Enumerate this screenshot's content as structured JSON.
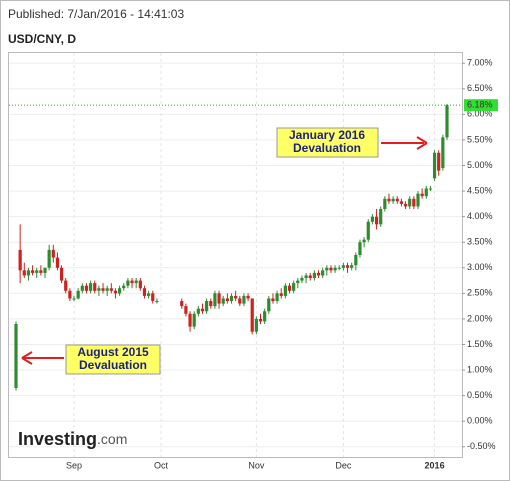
{
  "chart_data": {
    "type": "candlestick",
    "published": "Published: 7/Jan/2016 - 14:41:03",
    "title": "USD/CNY, D",
    "logo": {
      "name": "Investing",
      "suffix": ".com"
    },
    "annotations": [
      {
        "line1": "August 2015",
        "line2": "Devaluation"
      },
      {
        "line1": "January 2016",
        "line2": "Devaluation"
      }
    ],
    "up_color": "#2e8b2e",
    "down_color": "#cc2222",
    "grid": true,
    "ylim": [
      -0.7,
      7.2
    ],
    "yticks": [
      {
        "value": -0.5,
        "label": "-0.50%"
      },
      {
        "value": 0,
        "label": "0.00%"
      },
      {
        "value": 0.5,
        "label": "0.50%"
      },
      {
        "value": 1,
        "label": "1.00%"
      },
      {
        "value": 1.5,
        "label": "1.50%"
      },
      {
        "value": 2,
        "label": "2.00%"
      },
      {
        "value": 2.5,
        "label": "2.50%"
      },
      {
        "value": 3,
        "label": "3.00%"
      },
      {
        "value": 3.5,
        "label": "3.50%"
      },
      {
        "value": 4,
        "label": "4.00%"
      },
      {
        "value": 4.5,
        "label": "4.50%"
      },
      {
        "value": 5,
        "label": "5.00%"
      },
      {
        "value": 5.5,
        "label": "5.50%"
      },
      {
        "value": 6,
        "label": "6.00%"
      },
      {
        "value": 6.5,
        "label": "6.50%"
      },
      {
        "value": 7,
        "label": "7.00%"
      }
    ],
    "last_value": {
      "value": 6.18,
      "label": "6.18%"
    },
    "categories": [
      null,
      null,
      null,
      null,
      null,
      null,
      null,
      null,
      null,
      null,
      null,
      null,
      null,
      null,
      "Sep",
      null,
      null,
      null,
      null,
      null,
      null,
      null,
      null,
      null,
      null,
      null,
      null,
      null,
      null,
      null,
      null,
      null,
      null,
      null,
      null,
      "Oct",
      null,
      null,
      null,
      null,
      null,
      null,
      null,
      null,
      null,
      null,
      null,
      null,
      null,
      null,
      null,
      null,
      null,
      null,
      null,
      null,
      null,
      null,
      "Nov",
      null,
      null,
      null,
      null,
      null,
      null,
      null,
      null,
      null,
      null,
      null,
      null,
      null,
      null,
      null,
      null,
      null,
      null,
      null,
      null,
      "Dec",
      null,
      null,
      null,
      null,
      null,
      null,
      null,
      null,
      null,
      null,
      null,
      null,
      null,
      null,
      null,
      null,
      null,
      null,
      null,
      null,
      null,
      "2016",
      null,
      null,
      null
    ],
    "open": [
      0.65,
      3.35,
      2.95,
      2.85,
      2.95,
      2.9,
      2.95,
      2.9,
      3.0,
      3.35,
      3.2,
      3.0,
      2.75,
      2.55,
      2.4,
      2.4,
      2.55,
      2.65,
      2.55,
      2.7,
      2.55,
      2.6,
      2.55,
      2.6,
      2.55,
      2.5,
      2.6,
      2.65,
      2.75,
      2.7,
      2.75,
      2.6,
      2.45,
      2.5,
      2.35,
      null,
      null,
      null,
      null,
      null,
      2.35,
      2.25,
      2.1,
      1.85,
      2.1,
      2.2,
      2.15,
      2.35,
      2.25,
      2.5,
      2.3,
      2.4,
      2.35,
      2.45,
      2.4,
      2.3,
      2.45,
      2.4,
      1.75,
      2.0,
      1.95,
      2.15,
      2.4,
      2.35,
      2.5,
      2.45,
      2.65,
      2.55,
      2.7,
      2.75,
      2.8,
      2.85,
      2.8,
      2.9,
      2.85,
      2.95,
      3.0,
      2.95,
      3.0,
      3.0,
      3.05,
      3.0,
      3.05,
      3.25,
      3.5,
      3.55,
      3.9,
      4.0,
      3.85,
      4.15,
      4.35,
      4.3,
      4.35,
      4.3,
      4.25,
      4.2,
      4.35,
      4.2,
      4.45,
      4.4,
      4.55,
      4.75,
      5.25,
      4.95,
      5.55
    ],
    "high": [
      1.95,
      3.85,
      3.1,
      3.0,
      3.05,
      3.0,
      3.05,
      3.0,
      3.45,
      3.45,
      3.3,
      3.05,
      2.8,
      2.6,
      2.45,
      2.6,
      2.7,
      2.7,
      2.75,
      2.75,
      2.65,
      2.7,
      2.65,
      2.7,
      2.6,
      2.65,
      2.7,
      2.8,
      2.8,
      2.8,
      2.8,
      2.65,
      2.55,
      2.55,
      2.4,
      null,
      null,
      null,
      null,
      null,
      2.4,
      2.3,
      2.15,
      2.15,
      2.25,
      2.3,
      2.4,
      2.4,
      2.55,
      2.55,
      2.45,
      2.5,
      2.5,
      2.55,
      2.45,
      2.5,
      2.5,
      2.4,
      2.05,
      2.1,
      2.2,
      2.45,
      2.5,
      2.55,
      2.6,
      2.7,
      2.7,
      2.75,
      2.8,
      2.85,
      2.9,
      2.9,
      2.95,
      2.95,
      3.0,
      3.05,
      3.05,
      3.05,
      3.05,
      3.1,
      3.1,
      3.1,
      3.3,
      3.55,
      3.6,
      3.95,
      4.05,
      4.15,
      4.2,
      4.4,
      4.45,
      4.4,
      4.4,
      4.35,
      4.3,
      4.4,
      4.4,
      4.5,
      4.55,
      4.6,
      4.6,
      5.3,
      5.3,
      5.6,
      6.2
    ],
    "low": [
      0.6,
      2.7,
      2.8,
      2.75,
      2.85,
      2.8,
      2.85,
      2.8,
      2.95,
      3.1,
      2.95,
      2.7,
      2.5,
      2.35,
      2.35,
      2.38,
      2.5,
      2.5,
      2.5,
      2.5,
      2.45,
      2.5,
      2.45,
      2.5,
      2.4,
      2.45,
      2.55,
      2.6,
      2.6,
      2.6,
      2.55,
      2.4,
      2.4,
      2.3,
      2.3,
      null,
      null,
      null,
      null,
      null,
      2.2,
      2.05,
      1.75,
      1.8,
      2.05,
      2.1,
      2.1,
      2.2,
      2.2,
      2.2,
      2.25,
      2.3,
      2.3,
      2.35,
      2.25,
      2.25,
      2.35,
      1.7,
      1.7,
      1.9,
      1.9,
      2.1,
      2.3,
      2.3,
      2.4,
      2.4,
      2.5,
      2.5,
      2.6,
      2.7,
      2.7,
      2.75,
      2.75,
      2.8,
      2.8,
      2.85,
      2.9,
      2.9,
      2.95,
      2.95,
      2.9,
      2.95,
      2.95,
      3.2,
      3.4,
      3.5,
      3.85,
      3.75,
      3.8,
      4.1,
      4.25,
      4.25,
      4.25,
      4.2,
      4.15,
      4.15,
      4.15,
      4.15,
      4.35,
      4.35,
      4.5,
      4.7,
      4.8,
      4.9,
      5.5
    ],
    "close": [
      1.9,
      2.95,
      2.85,
      2.95,
      2.9,
      2.95,
      2.9,
      3.0,
      3.35,
      3.2,
      3.0,
      2.75,
      2.55,
      2.4,
      2.4,
      2.55,
      2.65,
      2.55,
      2.7,
      2.55,
      2.6,
      2.55,
      2.6,
      2.55,
      2.5,
      2.6,
      2.65,
      2.75,
      2.7,
      2.75,
      2.6,
      2.45,
      2.5,
      2.35,
      2.35,
      null,
      null,
      null,
      null,
      null,
      2.25,
      2.1,
      1.85,
      2.1,
      2.2,
      2.15,
      2.35,
      2.25,
      2.5,
      2.3,
      2.4,
      2.35,
      2.45,
      2.4,
      2.3,
      2.45,
      2.4,
      1.75,
      2.0,
      1.95,
      2.15,
      2.4,
      2.35,
      2.5,
      2.45,
      2.65,
      2.55,
      2.7,
      2.75,
      2.8,
      2.85,
      2.8,
      2.9,
      2.85,
      2.95,
      3.0,
      2.95,
      3.0,
      3.0,
      3.05,
      3.0,
      3.05,
      3.25,
      3.5,
      3.55,
      3.9,
      4.0,
      3.85,
      4.15,
      4.35,
      4.3,
      4.35,
      4.3,
      4.25,
      4.2,
      4.35,
      4.2,
      4.45,
      4.4,
      4.55,
      4.55,
      5.25,
      4.9,
      5.55,
      6.18
    ]
  }
}
